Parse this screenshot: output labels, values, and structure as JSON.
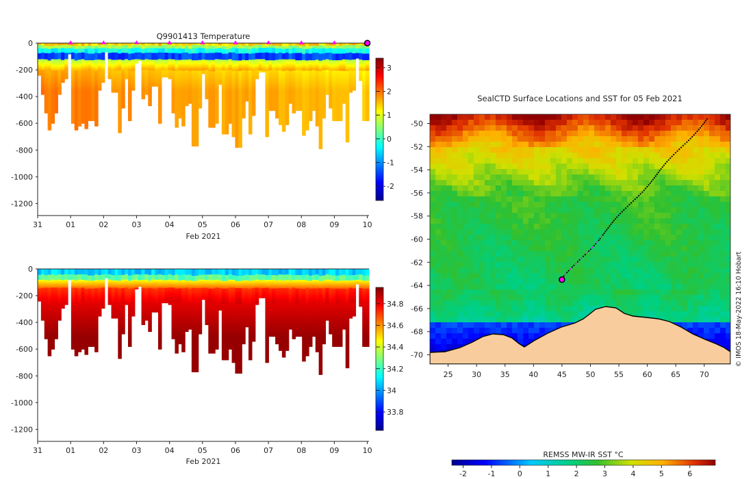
{
  "colors": {
    "background": "#ffffff",
    "land": "#f8cc9c",
    "ice_edge": "#000000",
    "track_marker": "#ff00ff",
    "track": "#000000",
    "axis": "#222222"
  },
  "chart_data": [
    {
      "id": "temperature",
      "type": "heatmap",
      "title": "Q9901413  Temperature",
      "xlabel": "Feb 2021",
      "ylabel": "",
      "x_ticks": [
        "31",
        "01",
        "02",
        "03",
        "04",
        "05",
        "06",
        "07",
        "08",
        "09",
        "10"
      ],
      "y_ticks": [
        "0",
        "-200",
        "-400",
        "-600",
        "-800",
        "-1000",
        "-1200"
      ],
      "y_tick_values": [
        0,
        -200,
        -400,
        -600,
        -800,
        -1000,
        -1200
      ],
      "xlim": [
        0,
        10.05
      ],
      "ylim": [
        -1290,
        0
      ],
      "colorbar": {
        "ticks": [
          "3",
          "2",
          "1",
          "0",
          "-1",
          "-2"
        ],
        "tick_values": [
          3,
          2,
          1,
          0,
          -1,
          -2
        ],
        "vmin": -2.6,
        "vmax": 3.4
      },
      "surfacing_markers_day": [
        1,
        2,
        3,
        4,
        5,
        6,
        7,
        8,
        9
      ],
      "current_position_day": 10,
      "profile_max_depths": [
        -380,
        -480,
        -560,
        -650,
        -600,
        -560,
        -480,
        -420,
        -400,
        -220,
        -600,
        -650,
        -620,
        -600,
        -640,
        -590,
        -590,
        -620,
        -460,
        -420,
        -200,
        -400,
        -470,
        -470,
        -670,
        -540,
        -400,
        -590,
        -460,
        -300,
        -280,
        -500,
        -480,
        -530,
        -440,
        -440,
        -600,
        -390,
        -390,
        -400,
        -560,
        -630,
        -580,
        -620,
        -530,
        -520,
        -770,
        -770,
        -540,
        -370,
        -500,
        -630,
        -630,
        -600,
        -430,
        -680,
        -680,
        -600,
        -700,
        -780,
        -780,
        -580,
        -510,
        -680,
        -570,
        -400,
        -360,
        -360,
        -700,
        -550,
        -550,
        -580,
        -610,
        -660,
        -610,
        -520,
        -560,
        -550,
        -550,
        -690,
        -650,
        -590,
        -550,
        -620,
        -790,
        -580,
        -480,
        -540,
        -590,
        -590,
        -590,
        -520,
        -740,
        -470,
        -460,
        -260,
        -410,
        -590,
        -590
      ]
    },
    {
      "id": "salinity",
      "type": "heatmap",
      "title": "",
      "xlabel": "Feb 2021",
      "ylabel": "",
      "x_ticks": [
        "31",
        "01",
        "02",
        "03",
        "04",
        "05",
        "06",
        "07",
        "08",
        "09",
        "10"
      ],
      "y_ticks": [
        "0",
        "-200",
        "-400",
        "-600",
        "-800",
        "-1000",
        "-1200"
      ],
      "y_tick_values": [
        0,
        -200,
        -400,
        -600,
        -800,
        -1000,
        -1200
      ],
      "xlim": [
        0,
        10.05
      ],
      "ylim": [
        -1290,
        0
      ],
      "colorbar": {
        "ticks": [
          "34.8",
          "34.6",
          "34.4",
          "34.2",
          "34",
          "33.8"
        ],
        "tick_values": [
          34.8,
          34.6,
          34.4,
          34.2,
          34.0,
          33.8
        ],
        "vmin": 33.63,
        "vmax": 34.95
      }
    },
    {
      "id": "sst_map",
      "type": "heatmap",
      "title": "SealCTD Surface Locations and SST for 05 Feb 2021",
      "xlabel": "",
      "ylabel": "",
      "x_ticks": [
        "25",
        "30",
        "35",
        "40",
        "45",
        "50",
        "55",
        "60",
        "65",
        "70"
      ],
      "x_tick_values": [
        25,
        30,
        35,
        40,
        45,
        50,
        55,
        60,
        65,
        70
      ],
      "y_ticks": [
        "-50",
        "-52",
        "-54",
        "-56",
        "-58",
        "-60",
        "-62",
        "-64",
        "-66",
        "-68",
        "-70"
      ],
      "y_tick_values": [
        -50,
        -52,
        -54,
        -56,
        -58,
        -60,
        -62,
        -64,
        -66,
        -68,
        -70
      ],
      "xlim": [
        21.8,
        74.6
      ],
      "ylim": [
        -70.8,
        -49.2
      ],
      "track_start": {
        "lon": 70.5,
        "lat": -49.6
      },
      "track_end": {
        "lon": 45.0,
        "lat": -63.5
      },
      "colorbar": {
        "label": "REMSS MW-IR SST °C",
        "ticks": [
          "-2",
          "-1",
          "0",
          "1",
          "2",
          "3",
          "4",
          "5",
          "6"
        ],
        "tick_values": [
          -2,
          -1,
          0,
          1,
          2,
          3,
          4,
          5,
          6
        ],
        "vmin": -2.4,
        "vmax": 6.9
      }
    }
  ],
  "credit": "© IMOS 18-May-2022 16:10 Hobart"
}
